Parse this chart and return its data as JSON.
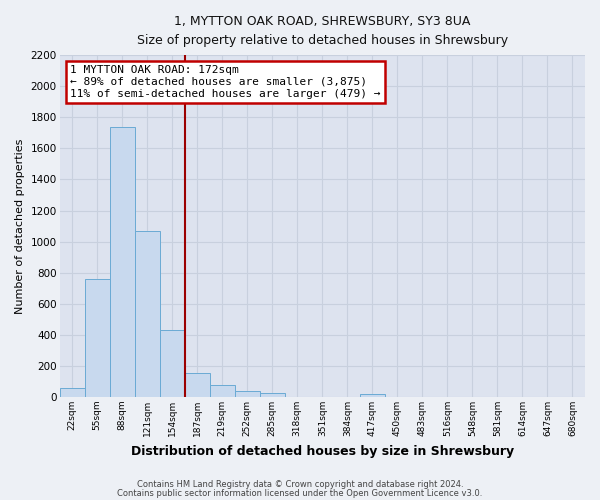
{
  "title_line1": "1, MYTTON OAK ROAD, SHREWSBURY, SY3 8UA",
  "title_line2": "Size of property relative to detached houses in Shrewsbury",
  "xlabel": "Distribution of detached houses by size in Shrewsbury",
  "ylabel": "Number of detached properties",
  "bar_labels": [
    "22sqm",
    "55sqm",
    "88sqm",
    "121sqm",
    "154sqm",
    "187sqm",
    "219sqm",
    "252sqm",
    "285sqm",
    "318sqm",
    "351sqm",
    "384sqm",
    "417sqm",
    "450sqm",
    "483sqm",
    "516sqm",
    "548sqm",
    "581sqm",
    "614sqm",
    "647sqm",
    "680sqm"
  ],
  "bar_values": [
    60,
    760,
    1740,
    1070,
    430,
    155,
    80,
    40,
    25,
    0,
    0,
    0,
    20,
    0,
    0,
    0,
    0,
    0,
    0,
    0,
    0
  ],
  "bar_color": "#c8d9ee",
  "bar_edge_color": "#6aaad4",
  "ylim": [
    0,
    2200
  ],
  "yticks": [
    0,
    200,
    400,
    600,
    800,
    1000,
    1200,
    1400,
    1600,
    1800,
    2000,
    2200
  ],
  "vline_x": 4.5,
  "vline_color": "#9b0000",
  "annotation_title": "1 MYTTON OAK ROAD: 172sqm",
  "annotation_line1": "← 89% of detached houses are smaller (3,875)",
  "annotation_line2": "11% of semi-detached houses are larger (479) →",
  "annotation_box_color": "#ffffff",
  "annotation_box_edge": "#c00000",
  "grid_color": "#c8d0de",
  "bg_color": "#dde3ef",
  "fig_bg_color": "#edf0f5",
  "footer_line1": "Contains HM Land Registry data © Crown copyright and database right 2024.",
  "footer_line2": "Contains public sector information licensed under the Open Government Licence v3.0."
}
